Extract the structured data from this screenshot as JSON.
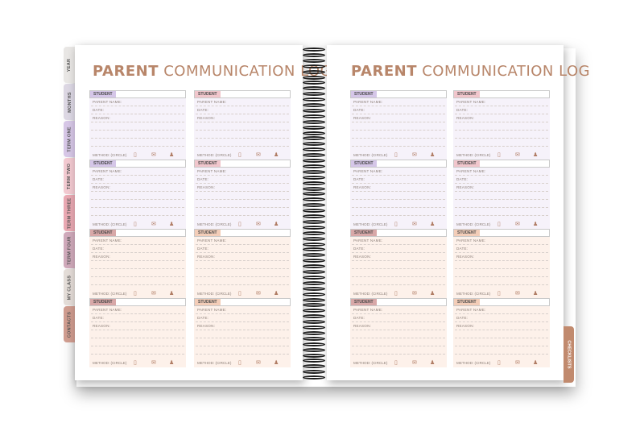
{
  "left_page": {
    "title_bold": "PARENT",
    "title_rest": "COMMUNICATION LOG"
  },
  "right_page": {
    "title_bold": "PARENT",
    "title_rest": "COMMUNICATION LOG"
  },
  "card_labels": {
    "student": "STUDENT",
    "parent_name": "PARENT NAME:",
    "date": "DATE:",
    "reason": "REASON:",
    "method": "METHOD: (CIRCLE)"
  },
  "tabs": [
    {
      "label": "YEAR",
      "color": "#e8e6e4"
    },
    {
      "label": "MONTHS",
      "color": "#dcd7e3"
    },
    {
      "label": "TERM ONE",
      "color": "#d6c6e6"
    },
    {
      "label": "TERM TWO",
      "color": "#f2c9d0"
    },
    {
      "label": "TERM THREE",
      "color": "#e9a8b2"
    },
    {
      "label": "TERM FOUR",
      "color": "#cfa9ba"
    },
    {
      "label": "MY CLASS",
      "color": "#e3dcd7"
    },
    {
      "label": "CONTACTS",
      "color": "#cf9c8f"
    }
  ],
  "right_tab": {
    "label": "CHECKLISTS",
    "color": "#c18a6e"
  },
  "method_icons": [
    "phone-icon",
    "email-icon",
    "person-icon"
  ],
  "colors": {
    "title": "#b8866a",
    "card_top_tint": "#f6f2fa",
    "card_bottom_tint": "#fdf1ea",
    "student_tag_purple": "#d5c6e8",
    "student_tag_pink": "#f1c6cc",
    "student_tag_rose": "#d8a8a8",
    "student_tag_peach": "#f3cdb8"
  }
}
